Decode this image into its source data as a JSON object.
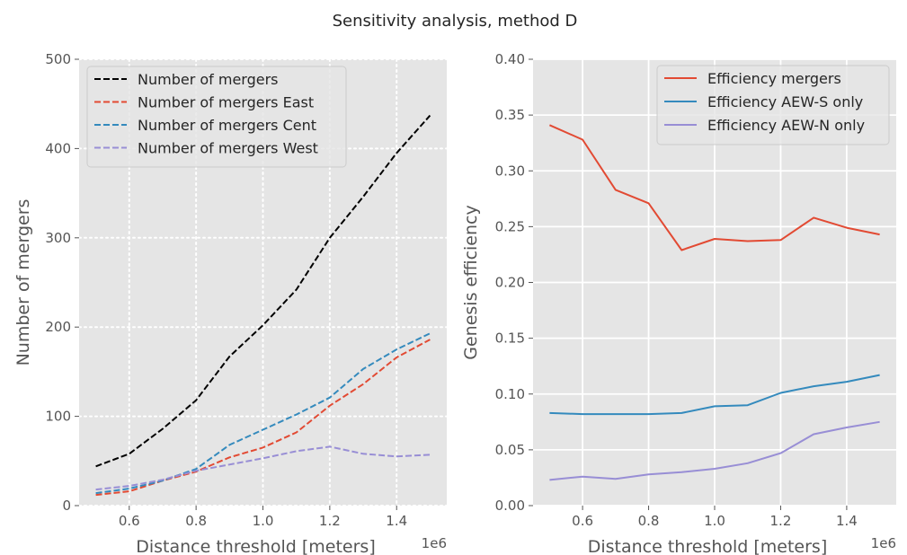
{
  "figure": {
    "title": "Sensitivity analysis, method D"
  },
  "chart_data": [
    {
      "type": "line",
      "xlabel": "Distance threshold [meters]",
      "ylabel": "Number of mergers",
      "x_offset_label": "1e6",
      "xlim": [
        0.45,
        1.55
      ],
      "ylim": [
        0,
        500
      ],
      "xticks": [
        0.6,
        0.8,
        1.0,
        1.2,
        1.4
      ],
      "xtick_labels": [
        "0.6",
        "0.8",
        "1.0",
        "1.2",
        "1.4"
      ],
      "yticks": [
        0,
        100,
        200,
        300,
        400,
        500
      ],
      "ytick_labels": [
        "0",
        "100",
        "200",
        "300",
        "400",
        "500"
      ],
      "grid": true,
      "grid_style": "dotted",
      "legend": "upper-left",
      "x": [
        0.5,
        0.6,
        0.7,
        0.8,
        0.9,
        1.0,
        1.1,
        1.2,
        1.3,
        1.4,
        1.5
      ],
      "series": [
        {
          "name": "Number of mergers",
          "color": "#000000",
          "dash": "dashed",
          "values": [
            44,
            58,
            86,
            118,
            167,
            202,
            242,
            300,
            346,
            395,
            437
          ]
        },
        {
          "name": "Number of mergers East",
          "color": "#E24A33",
          "dash": "dashed",
          "values": [
            12,
            16,
            28,
            38,
            54,
            65,
            82,
            112,
            136,
            166,
            186
          ]
        },
        {
          "name": "Number of mergers Cent",
          "color": "#348ABD",
          "dash": "dashed",
          "values": [
            14,
            19,
            28,
            41,
            68,
            85,
            102,
            121,
            153,
            175,
            193
          ]
        },
        {
          "name": "Number of mergers West",
          "color": "#988ED5",
          "dash": "dashed",
          "values": [
            18,
            22,
            29,
            39,
            46,
            53,
            61,
            66,
            58,
            55,
            57
          ]
        }
      ]
    },
    {
      "type": "line",
      "xlabel": "Distance threshold [meters]",
      "ylabel": "Genesis efficiency",
      "x_offset_label": "1e6",
      "xlim": [
        0.45,
        1.55
      ],
      "ylim": [
        0.0,
        0.4
      ],
      "xticks": [
        0.6,
        0.8,
        1.0,
        1.2,
        1.4
      ],
      "xtick_labels": [
        "0.6",
        "0.8",
        "1.0",
        "1.2",
        "1.4"
      ],
      "yticks": [
        0.0,
        0.05,
        0.1,
        0.15,
        0.2,
        0.25,
        0.3,
        0.35,
        0.4
      ],
      "ytick_labels": [
        "0.00",
        "0.05",
        "0.10",
        "0.15",
        "0.20",
        "0.25",
        "0.30",
        "0.35",
        "0.40"
      ],
      "grid": true,
      "grid_style": "solid",
      "legend": "upper-right",
      "x": [
        0.5,
        0.6,
        0.7,
        0.8,
        0.9,
        1.0,
        1.1,
        1.2,
        1.3,
        1.4,
        1.5
      ],
      "series": [
        {
          "name": "Efficiency mergers",
          "color": "#E24A33",
          "dash": "solid",
          "values": [
            0.341,
            0.328,
            0.283,
            0.271,
            0.229,
            0.239,
            0.237,
            0.238,
            0.258,
            0.249,
            0.243
          ]
        },
        {
          "name": "Efficiency AEW-S only",
          "color": "#348ABD",
          "dash": "solid",
          "values": [
            0.083,
            0.082,
            0.082,
            0.082,
            0.083,
            0.089,
            0.09,
            0.101,
            0.107,
            0.111,
            0.117
          ]
        },
        {
          "name": "Efficiency AEW-N only",
          "color": "#988ED5",
          "dash": "solid",
          "values": [
            0.023,
            0.026,
            0.024,
            0.028,
            0.03,
            0.033,
            0.038,
            0.047,
            0.064,
            0.07,
            0.075
          ]
        }
      ]
    }
  ]
}
